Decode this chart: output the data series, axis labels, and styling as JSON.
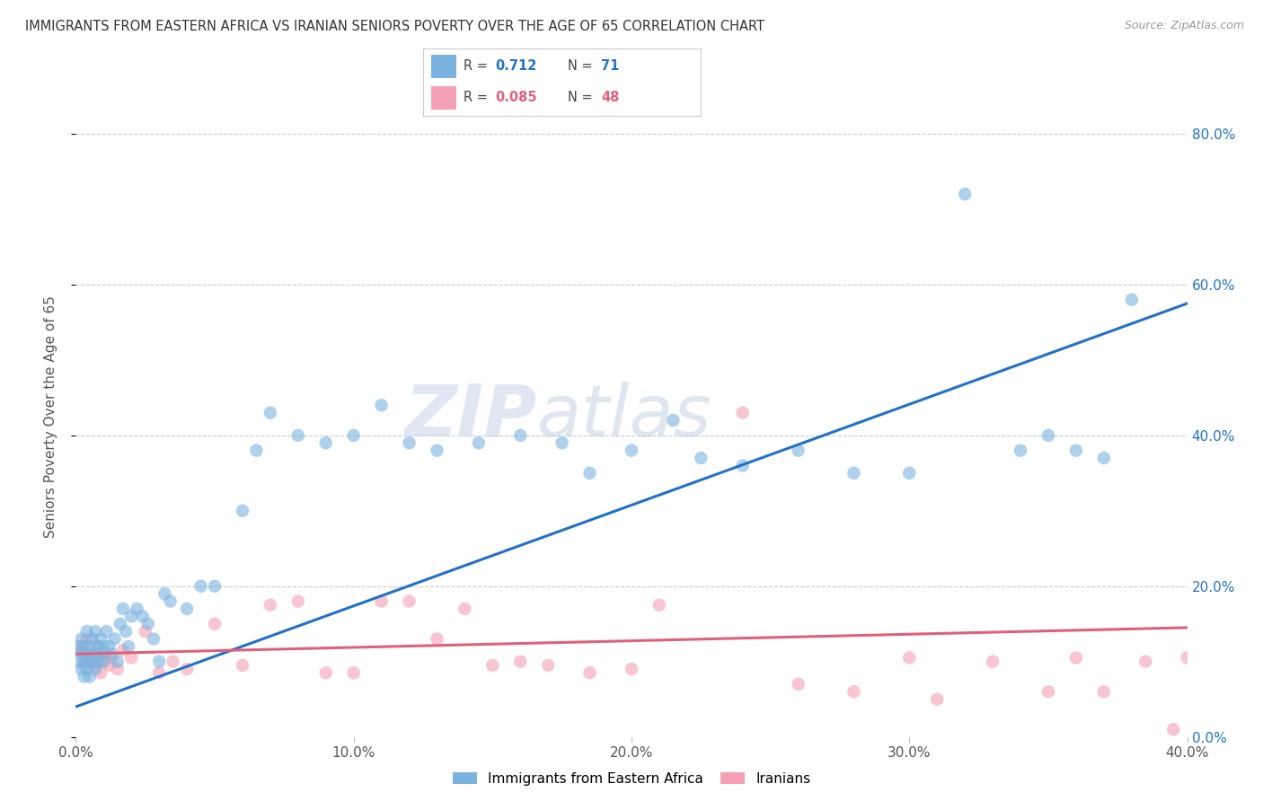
{
  "title": "IMMIGRANTS FROM EASTERN AFRICA VS IRANIAN SENIORS POVERTY OVER THE AGE OF 65 CORRELATION CHART",
  "source": "Source: ZipAtlas.com",
  "ylabel": "Seniors Poverty Over the Age of 65",
  "xlabel": "",
  "blue_R": 0.712,
  "blue_N": 71,
  "pink_R": 0.085,
  "pink_N": 48,
  "blue_label": "Immigrants from Eastern Africa",
  "pink_label": "Iranians",
  "xlim": [
    0.0,
    0.4
  ],
  "ylim": [
    0.0,
    0.85
  ],
  "yticks": [
    0.0,
    0.2,
    0.4,
    0.6,
    0.8
  ],
  "xticks": [
    0.0,
    0.1,
    0.2,
    0.3,
    0.4
  ],
  "blue_color": "#7ab3e0",
  "pink_color": "#f4a0b5",
  "blue_line_color": "#2171c7",
  "pink_line_color": "#e0607a",
  "watermark_zip": "ZIP",
  "watermark_atlas": "atlas",
  "blue_scatter_x": [
    0.001,
    0.001,
    0.002,
    0.002,
    0.002,
    0.003,
    0.003,
    0.003,
    0.004,
    0.004,
    0.004,
    0.005,
    0.005,
    0.005,
    0.006,
    0.006,
    0.007,
    0.007,
    0.007,
    0.008,
    0.008,
    0.009,
    0.009,
    0.01,
    0.01,
    0.011,
    0.012,
    0.013,
    0.014,
    0.015,
    0.016,
    0.017,
    0.018,
    0.019,
    0.02,
    0.022,
    0.024,
    0.026,
    0.028,
    0.03,
    0.032,
    0.034,
    0.04,
    0.045,
    0.05,
    0.06,
    0.065,
    0.07,
    0.08,
    0.09,
    0.1,
    0.11,
    0.12,
    0.13,
    0.145,
    0.16,
    0.175,
    0.185,
    0.2,
    0.215,
    0.225,
    0.24,
    0.26,
    0.28,
    0.3,
    0.32,
    0.34,
    0.35,
    0.36,
    0.37,
    0.38
  ],
  "blue_scatter_y": [
    0.12,
    0.1,
    0.13,
    0.09,
    0.11,
    0.1,
    0.12,
    0.08,
    0.14,
    0.11,
    0.09,
    0.12,
    0.08,
    0.1,
    0.13,
    0.1,
    0.14,
    0.11,
    0.09,
    0.12,
    0.1,
    0.13,
    0.11,
    0.12,
    0.1,
    0.14,
    0.12,
    0.11,
    0.13,
    0.1,
    0.15,
    0.17,
    0.14,
    0.12,
    0.16,
    0.17,
    0.16,
    0.15,
    0.13,
    0.1,
    0.19,
    0.18,
    0.17,
    0.2,
    0.2,
    0.3,
    0.38,
    0.43,
    0.4,
    0.39,
    0.4,
    0.44,
    0.39,
    0.38,
    0.39,
    0.4,
    0.39,
    0.35,
    0.38,
    0.42,
    0.37,
    0.36,
    0.38,
    0.35,
    0.35,
    0.72,
    0.38,
    0.4,
    0.38,
    0.37,
    0.58
  ],
  "pink_scatter_x": [
    0.001,
    0.002,
    0.003,
    0.004,
    0.005,
    0.006,
    0.007,
    0.008,
    0.009,
    0.01,
    0.011,
    0.012,
    0.013,
    0.015,
    0.017,
    0.02,
    0.025,
    0.03,
    0.035,
    0.04,
    0.05,
    0.06,
    0.07,
    0.08,
    0.09,
    0.1,
    0.11,
    0.12,
    0.13,
    0.14,
    0.15,
    0.16,
    0.17,
    0.185,
    0.2,
    0.21,
    0.24,
    0.26,
    0.28,
    0.3,
    0.31,
    0.33,
    0.35,
    0.36,
    0.37,
    0.385,
    0.395,
    0.4
  ],
  "pink_scatter_y": [
    0.115,
    0.12,
    0.095,
    0.13,
    0.11,
    0.1,
    0.095,
    0.12,
    0.085,
    0.1,
    0.11,
    0.095,
    0.105,
    0.09,
    0.115,
    0.105,
    0.14,
    0.085,
    0.1,
    0.09,
    0.15,
    0.095,
    0.175,
    0.18,
    0.085,
    0.085,
    0.18,
    0.18,
    0.13,
    0.17,
    0.095,
    0.1,
    0.095,
    0.085,
    0.09,
    0.175,
    0.43,
    0.07,
    0.06,
    0.105,
    0.05,
    0.1,
    0.06,
    0.105,
    0.06,
    0.1,
    0.01,
    0.105
  ],
  "blue_line_x0": 0.0,
  "blue_line_y0": 0.04,
  "blue_line_x1": 0.4,
  "blue_line_y1": 0.575,
  "pink_line_x0": 0.0,
  "pink_line_y0": 0.11,
  "pink_line_x1": 0.4,
  "pink_line_y1": 0.145
}
